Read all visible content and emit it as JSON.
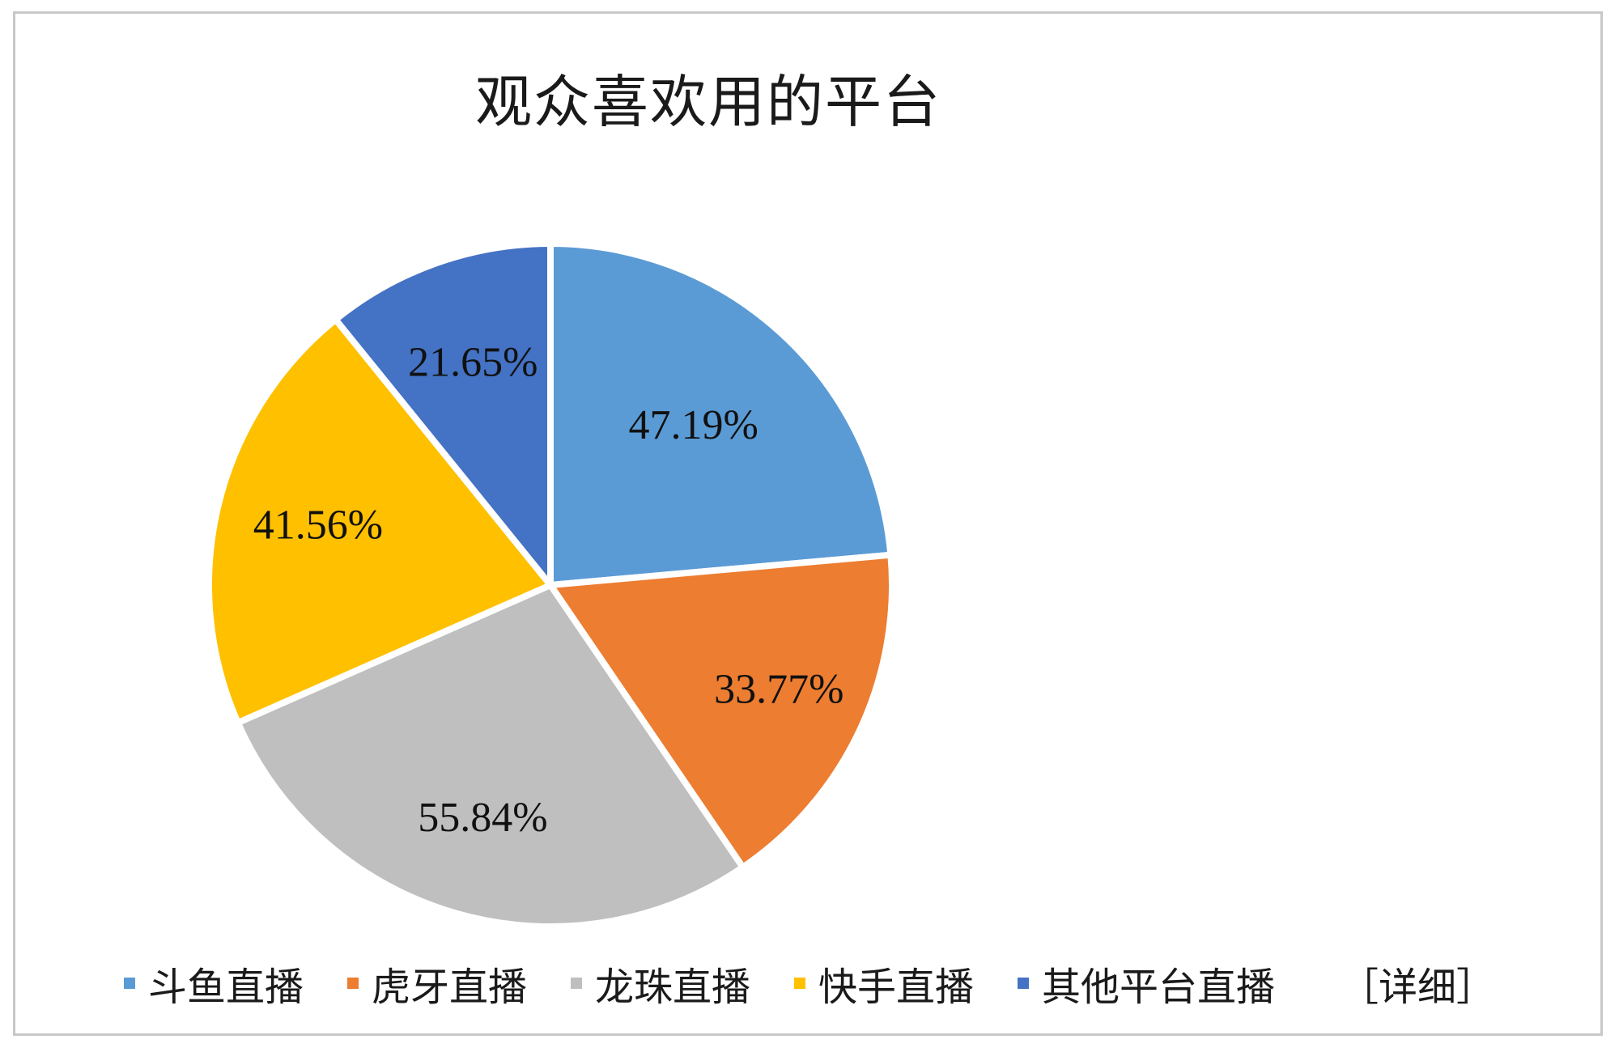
{
  "chart_data": {
    "type": "pie",
    "title": "观众喜欢用的平台",
    "categories": [
      "斗鱼直播",
      "虎牙直播",
      "龙珠直播",
      "快手直播",
      "其他平台直播"
    ],
    "values": [
      47.19,
      33.77,
      55.84,
      41.56,
      21.65
    ],
    "labels": [
      "47.19%",
      "33.77%",
      "55.84%",
      "41.56%",
      "21.65%"
    ],
    "colors": [
      "#5b9bd5",
      "#ed7d31",
      "#bfbfbf",
      "#ffc000",
      "#4472c4"
    ],
    "legend_position": "bottom",
    "legend_extra": "［详细］"
  }
}
